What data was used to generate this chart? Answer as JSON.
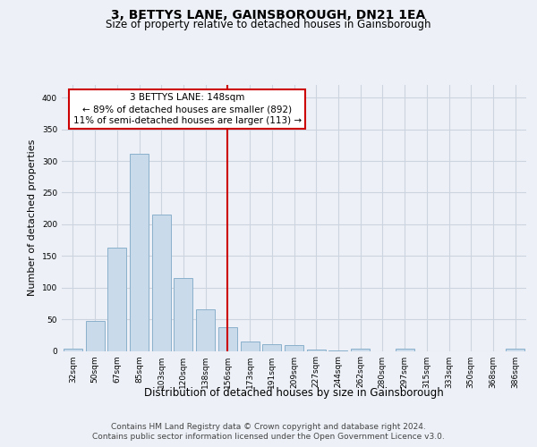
{
  "title": "3, BETTYS LANE, GAINSBOROUGH, DN21 1EA",
  "subtitle": "Size of property relative to detached houses in Gainsborough",
  "xlabel": "Distribution of detached houses by size in Gainsborough",
  "ylabel": "Number of detached properties",
  "categories": [
    "32sqm",
    "50sqm",
    "67sqm",
    "85sqm",
    "103sqm",
    "120sqm",
    "138sqm",
    "156sqm",
    "173sqm",
    "191sqm",
    "209sqm",
    "227sqm",
    "244sqm",
    "262sqm",
    "280sqm",
    "297sqm",
    "315sqm",
    "333sqm",
    "350sqm",
    "368sqm",
    "386sqm"
  ],
  "values": [
    4,
    47,
    163,
    312,
    215,
    115,
    65,
    38,
    15,
    11,
    9,
    2,
    1,
    3,
    0,
    3,
    0,
    0,
    0,
    0,
    4
  ],
  "bar_color": "#c9daea",
  "bar_edge_color": "#8ab0cc",
  "grid_color": "#ccd4e0",
  "background_color": "#edf1f7",
  "vline_color": "#cc0000",
  "vline_pos": 7.0,
  "annotation_line1": "3 BETTYS LANE: 148sqm",
  "annotation_line2": "← 89% of detached houses are smaller (892)",
  "annotation_line3": "11% of semi-detached houses are larger (113) →",
  "annotation_box_facecolor": "#ffffff",
  "annotation_box_edgecolor": "#cc0000",
  "ylim": [
    0,
    420
  ],
  "yticks": [
    0,
    50,
    100,
    150,
    200,
    250,
    300,
    350,
    400
  ],
  "footer_line1": "Contains HM Land Registry data © Crown copyright and database right 2024.",
  "footer_line2": "Contains public sector information licensed under the Open Government Licence v3.0.",
  "title_fontsize": 10,
  "subtitle_fontsize": 8.5,
  "xlabel_fontsize": 8.5,
  "ylabel_fontsize": 8,
  "tick_fontsize": 6.5,
  "annotation_fontsize": 7.5,
  "footer_fontsize": 6.5
}
